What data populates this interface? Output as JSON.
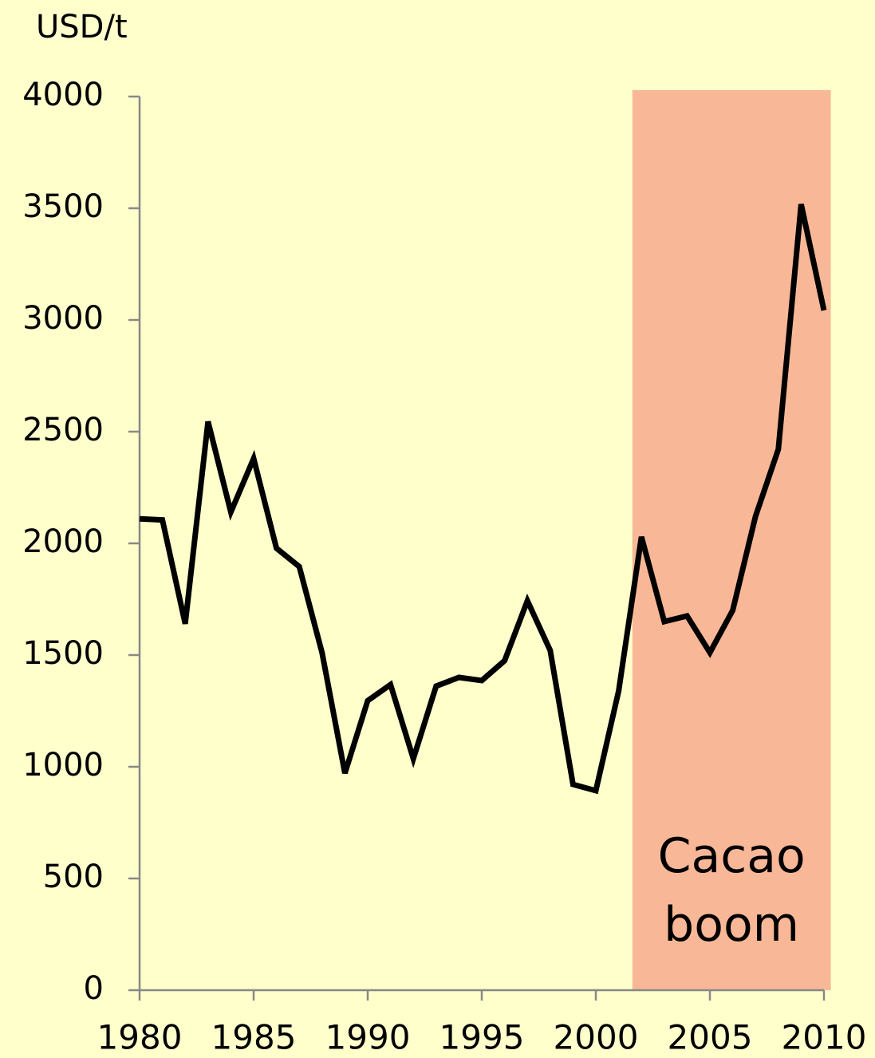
{
  "chart_data": {
    "type": "line",
    "y_axis_label": "USD/t",
    "x": [
      1980,
      1981,
      1982,
      1983,
      1984,
      1985,
      1986,
      1987,
      1988,
      1989,
      1990,
      1991,
      1992,
      1993,
      1994,
      1995,
      1996,
      1997,
      1998,
      1999,
      2000,
      2001,
      2002,
      2003,
      2004,
      2005,
      2006,
      2007,
      2008,
      2009,
      2010
    ],
    "series": [
      {
        "color": "#000000",
        "values": [
          2110,
          2105,
          1640,
          2545,
          2140,
          2380,
          1978,
          1896,
          1510,
          971,
          1296,
          1368,
          1036,
          1361,
          1400,
          1386,
          1475,
          1743,
          1521,
          921,
          893,
          1339,
          2029,
          1650,
          1675,
          1511,
          1700,
          2121,
          2421,
          3518,
          3043
        ]
      }
    ],
    "xlim": [
      1980,
      2010
    ],
    "xticks": [
      1980,
      1985,
      1990,
      1995,
      2000,
      2005,
      2010
    ],
    "ylim": [
      0,
      4000
    ],
    "yticks": [
      0,
      500,
      1000,
      1500,
      2000,
      2500,
      3000,
      3500,
      4000
    ],
    "grid": false,
    "highlight": {
      "xrange": [
        2001.6,
        2010.3
      ],
      "color": "#f8b898",
      "label": "Cacao boom"
    }
  }
}
